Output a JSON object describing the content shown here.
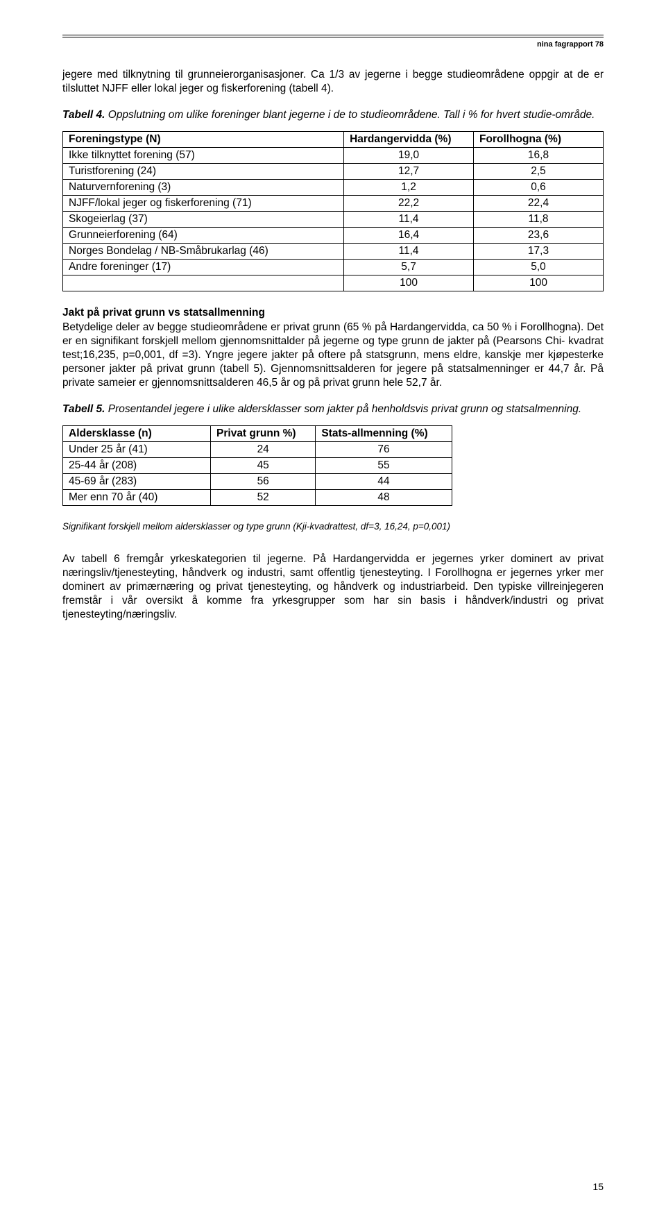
{
  "header_label": "nina fagrapport 78",
  "intro_para": "jegere med tilknytning til grunneierorganisasjoner. Ca 1/3 av jegerne i begge studieområdene oppgir at de er tilsluttet NJFF eller lokal jeger og fiskerforening (tabell 4).",
  "table4_caption_label": "Tabell 4.",
  "table4_caption_text": " Oppslutning om ulike foreninger blant jegerne i de to studieområdene. Tall i % for hvert studie-område.",
  "table4": {
    "columns": [
      "Foreningstype (N)",
      "Hardangervidda (%)",
      "Forollhogna (%)"
    ],
    "rows": [
      [
        "Ikke tilknyttet forening (57)",
        "19,0",
        "16,8"
      ],
      [
        "Turistforening (24)",
        "12,7",
        "2,5"
      ],
      [
        "Naturvernforening (3)",
        "1,2",
        "0,6"
      ],
      [
        "NJFF/lokal jeger og fiskerforening (71)",
        "22,2",
        "22,4"
      ],
      [
        "Skogeierlag (37)",
        "11,4",
        "11,8"
      ],
      [
        "Grunneierforening (64)",
        "16,4",
        "23,6"
      ],
      [
        "Norges Bondelag / NB-Småbrukarlag (46)",
        "11,4",
        "17,3"
      ],
      [
        "Andre foreninger (17)",
        "5,7",
        "5,0"
      ],
      [
        "",
        "100",
        "100"
      ]
    ],
    "col_widths": [
      "52%",
      "24%",
      "24%"
    ]
  },
  "section_heading": "Jakt på privat grunn vs statsallmenning",
  "section_para": "Betydelige deler av begge studieområdene er privat grunn (65 % på Hardangervidda, ca 50 % i Forollhogna). Det er en signifikant forskjell mellom gjennomsnittalder på jegerne og type grunn de jakter på (Pearsons Chi- kvadrat test;16,235, p=0,001, df =3). Yngre jegere jakter på oftere på statsgrunn, mens eldre, kanskje mer kjøpesterke personer jakter på privat grunn (tabell 5). Gjennomsnittsalderen for jegere på statsalmenninger er 44,7 år. På private sameier er gjennomsnittsalderen 46,5 år og på privat grunn hele 52,7 år.",
  "table5_caption_label": "Tabell 5.",
  "table5_caption_text": " Prosentandel jegere i ulike aldersklasser som jakter på henholdsvis privat grunn og statsalmenning.",
  "table5": {
    "columns": [
      "Aldersklasse (n)",
      "Privat grunn %)",
      "Stats-allmenning (%)"
    ],
    "rows": [
      [
        "Under 25 år (41)",
        "24",
        "76"
      ],
      [
        "25-44 år (208)",
        "45",
        "55"
      ],
      [
        "45-69 år (283)",
        "56",
        "44"
      ],
      [
        "Mer enn 70 år (40)",
        "52",
        "48"
      ]
    ],
    "col_widths": [
      "38%",
      "27%",
      "35%"
    ]
  },
  "sig_note": "Signifikant forskjell mellom aldersklasser og type grunn (Kji-kvadrattest, df=3, 16,24, p=0,001)",
  "closing_para": "Av tabell 6 fremgår yrkeskategorien til jegerne. På Hardangervidda er jegernes yrker dominert av privat næringsliv/tjenesteyting, håndverk og industri, samt offentlig tjenesteyting. I Foroll­hogna er jegernes yrker mer dominert av primærnæring og privat tjenesteyting, og håndverk og industriarbeid. Den typiske villreinjegeren fremstår i vår oversikt å komme fra yrkesgrupper som har sin basis i håndverk/industri og privat tjenesteyting/næringsliv.",
  "page_number": "15"
}
